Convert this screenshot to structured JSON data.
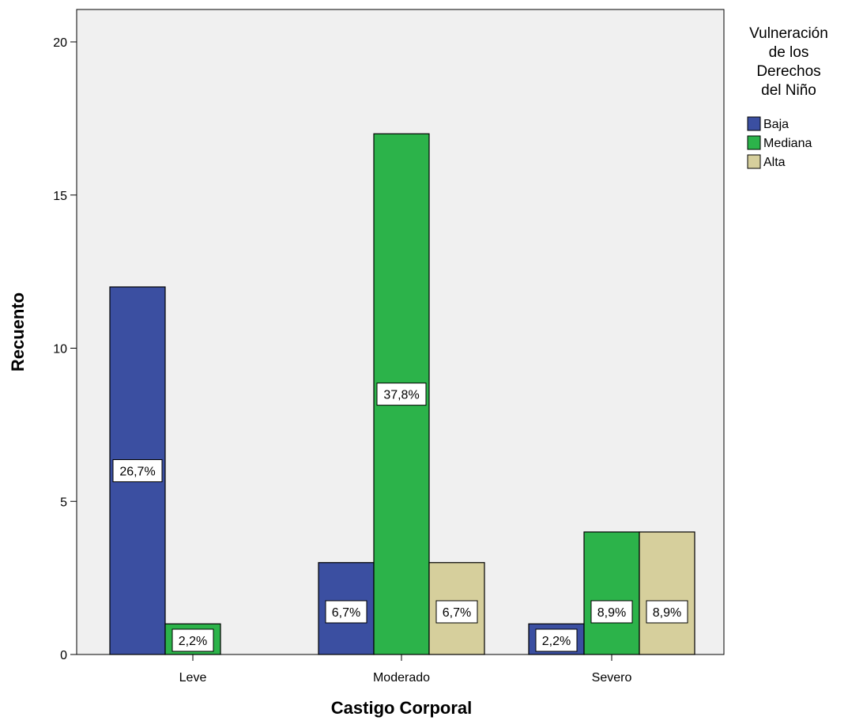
{
  "chart_data": {
    "type": "bar",
    "title": "",
    "xlabel": "Castigo Corporal",
    "ylabel": "Recuento",
    "categories": [
      "Leve",
      "Moderado",
      "Severo"
    ],
    "ylim": [
      0,
      21
    ],
    "yticks": [
      0,
      5,
      10,
      15,
      20
    ],
    "grid": false,
    "legend": {
      "title_lines": [
        "Vulneración",
        "de los",
        "Derechos",
        "del Niño"
      ],
      "placement": "right"
    },
    "series": [
      {
        "name": "Baja",
        "color": "#3b4fa1",
        "values": [
          12,
          3,
          1
        ],
        "labels": [
          "26,7%",
          "6,7%",
          "2,2%"
        ]
      },
      {
        "name": "Mediana",
        "color": "#2cb34a",
        "values": [
          1,
          17,
          4
        ],
        "labels": [
          "2,2%",
          "37,8%",
          "8,9%"
        ]
      },
      {
        "name": "Alta",
        "color": "#d6cf9c",
        "values": [
          0,
          3,
          4
        ],
        "labels": [
          "",
          "6,7%",
          "8,9%"
        ]
      }
    ]
  }
}
